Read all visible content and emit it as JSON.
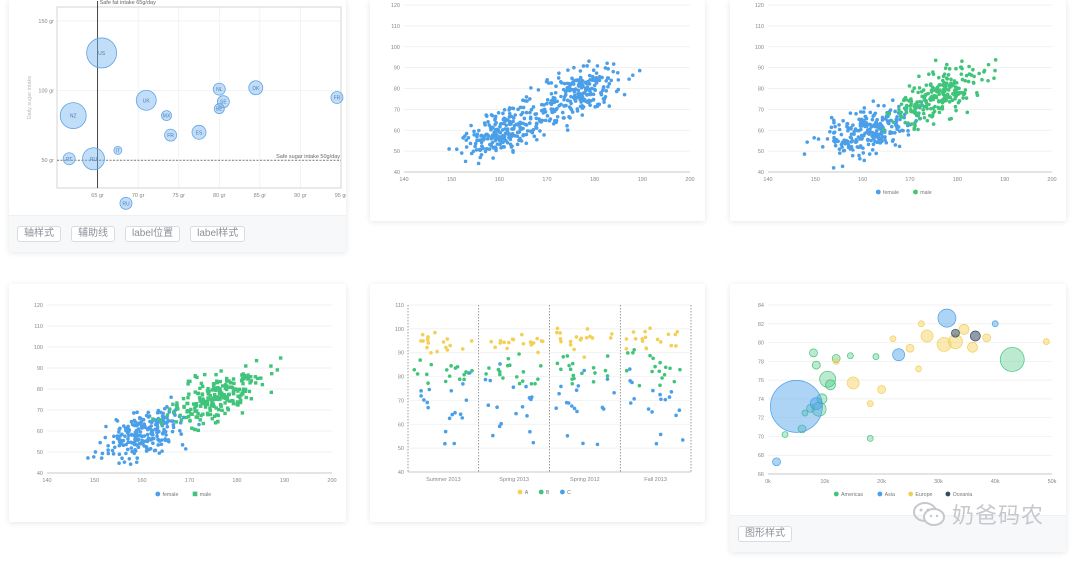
{
  "colors": {
    "blue": "#4a9fe8",
    "green": "#3fc47a",
    "yellow": "#f4cf55",
    "dark": "#344b5f",
    "grid": "#eeeeee",
    "axis": "#999999",
    "text": "#666666"
  },
  "cards": [
    {
      "id": "c1",
      "footer_tags": [
        "轴样式",
        "辅助线",
        "label位置",
        "label样式"
      ]
    },
    {
      "id": "c2",
      "footer_tags": []
    },
    {
      "id": "c3",
      "footer_tags": []
    },
    {
      "id": "c4",
      "footer_tags": []
    },
    {
      "id": "c5",
      "footer_tags": []
    },
    {
      "id": "c6",
      "footer_tags": [
        "图形样式"
      ]
    }
  ],
  "watermark": {
    "text": "奶爸码农"
  },
  "chart_data": [
    {
      "type": "scatter",
      "variant": "bubble-labeled",
      "xlim": [
        60,
        95
      ],
      "ylim": [
        30,
        160
      ],
      "xticks": [
        65,
        70,
        75,
        80,
        85,
        90,
        95
      ],
      "xtick_labels": [
        "65 gr",
        "70 gr",
        "75 gr",
        "80 gr",
        "85 gr",
        "90 gr",
        "95 gr"
      ],
      "yticks": [
        50,
        100,
        150
      ],
      "ytick_labels": [
        "50 gr",
        "100 gr",
        "150 gr"
      ],
      "ylabel": "Daily sugar intake",
      "reference_lines": [
        {
          "axis": "x",
          "value": 65,
          "label": "Safe fat intake 65g/day"
        },
        {
          "axis": "y",
          "value": 50,
          "label": "Safe sugar intake 50g/day"
        }
      ],
      "points": [
        {
          "x": 65.5,
          "y": 127,
          "r": 15,
          "label": "US"
        },
        {
          "x": 62.0,
          "y": 82,
          "r": 13,
          "label": "NZ"
        },
        {
          "x": 71.0,
          "y": 93,
          "r": 10,
          "label": "UK"
        },
        {
          "x": 64.5,
          "y": 51,
          "r": 11,
          "label": "RU"
        },
        {
          "x": 61.5,
          "y": 51,
          "r": 6,
          "label": "PT"
        },
        {
          "x": 67.5,
          "y": 57,
          "r": 4,
          "label": "IT"
        },
        {
          "x": 68.5,
          "y": 19,
          "r": 6,
          "label": "RU"
        },
        {
          "x": 73.5,
          "y": 82,
          "r": 5,
          "label": "MX"
        },
        {
          "x": 74.0,
          "y": 68,
          "r": 6,
          "label": "FR"
        },
        {
          "x": 77.5,
          "y": 70,
          "r": 7,
          "label": "ES"
        },
        {
          "x": 80.0,
          "y": 101,
          "r": 6,
          "label": "NL"
        },
        {
          "x": 80.5,
          "y": 92,
          "r": 6,
          "label": "SE"
        },
        {
          "x": 80.0,
          "y": 87,
          "r": 5,
          "label": "BE"
        },
        {
          "x": 84.5,
          "y": 102,
          "r": 7,
          "label": "DK"
        },
        {
          "x": 94.5,
          "y": 95,
          "r": 6,
          "label": "FR"
        }
      ]
    },
    {
      "type": "scatter",
      "xlim": [
        140,
        200
      ],
      "ylim": [
        40,
        120
      ],
      "xticks": [
        140,
        150,
        160,
        170,
        180,
        190,
        200
      ],
      "yticks": [
        40,
        50,
        60,
        70,
        80,
        90,
        100,
        110,
        120
      ],
      "series": [
        {
          "color": "blue",
          "marker": "circle",
          "seed": 7,
          "n": 470,
          "mode": "all"
        }
      ]
    },
    {
      "type": "scatter",
      "xlim": [
        140,
        200
      ],
      "ylim": [
        40,
        120
      ],
      "xticks": [
        140,
        150,
        160,
        170,
        180,
        190,
        200
      ],
      "yticks": [
        40,
        50,
        60,
        70,
        80,
        90,
        100,
        110,
        120
      ],
      "series": [
        {
          "name": "female",
          "color": "blue",
          "marker": "circle",
          "seed": 11,
          "n": 240,
          "mode": "female"
        },
        {
          "name": "male",
          "color": "green",
          "marker": "circle",
          "seed": 23,
          "n": 240,
          "mode": "male"
        }
      ]
    },
    {
      "type": "scatter",
      "xlim": [
        140,
        200
      ],
      "ylim": [
        40,
        120
      ],
      "xticks": [
        140,
        150,
        160,
        170,
        180,
        190,
        200
      ],
      "yticks": [
        40,
        50,
        60,
        70,
        80,
        90,
        100,
        110,
        120
      ],
      "series": [
        {
          "name": "female",
          "color": "blue",
          "marker": "circle",
          "seed": 31,
          "n": 240,
          "mode": "female"
        },
        {
          "name": "male",
          "color": "green",
          "marker": "square",
          "seed": 47,
          "n": 240,
          "mode": "male"
        }
      ]
    },
    {
      "type": "scatter",
      "variant": "category-jitter",
      "categories": [
        "Summer 2013",
        "Spring 2013",
        "Spring 2012",
        "Fall 2013"
      ],
      "ylim": [
        40,
        110
      ],
      "yticks": [
        40,
        50,
        60,
        70,
        80,
        90,
        100,
        110
      ],
      "series": [
        {
          "name": "A",
          "color": "yellow",
          "seed": 5,
          "center": 95,
          "spread": 4
        },
        {
          "name": "B",
          "color": "green",
          "seed": 9,
          "center": 83,
          "spread": 6
        },
        {
          "name": "C",
          "color": "blue",
          "seed": 13,
          "center": 70,
          "spread": 9
        }
      ]
    },
    {
      "type": "scatter",
      "variant": "bubble",
      "xlim": [
        0,
        50000
      ],
      "ylim": [
        66,
        84
      ],
      "xticks": [
        0,
        10000,
        20000,
        30000,
        40000,
        50000
      ],
      "xtick_labels": [
        "0k",
        "10k",
        "20k",
        "30k",
        "40k",
        "50k"
      ],
      "yticks": [
        66,
        68,
        70,
        72,
        74,
        76,
        78,
        80,
        82,
        84
      ],
      "series": [
        {
          "name": "Americas",
          "color": "green",
          "points": [
            [
              43000,
              78.2,
              12
            ],
            [
              10500,
              76.1,
              8
            ],
            [
              11000,
              75.5,
              5
            ],
            [
              9000,
              72.9,
              7
            ],
            [
              12000,
              78.3,
              4
            ],
            [
              3000,
              70.2,
              3
            ],
            [
              6000,
              70.8,
              4
            ],
            [
              14500,
              78.6,
              3
            ],
            [
              8000,
              78.9,
              4
            ],
            [
              19000,
              78.5,
              3
            ],
            [
              9500,
              74.0,
              5
            ],
            [
              7500,
              73.0,
              4
            ],
            [
              18000,
              69.8,
              3
            ],
            [
              6500,
              72.5,
              3
            ],
            [
              8500,
              77.6,
              4
            ]
          ]
        },
        {
          "name": "Asia",
          "color": "blue",
          "points": [
            [
              5000,
              73.2,
              26
            ],
            [
              31500,
              82.6,
              9
            ],
            [
              23000,
              78.7,
              6
            ],
            [
              1500,
              67.3,
              4
            ],
            [
              8500,
              73.5,
              6
            ],
            [
              40000,
              82.0,
              3
            ]
          ]
        },
        {
          "name": "Europe",
          "color": "yellow",
          "points": [
            [
              28000,
              80.7,
              6
            ],
            [
              33000,
              80.1,
              7
            ],
            [
              34500,
              81.4,
              5
            ],
            [
              31000,
              79.8,
              7
            ],
            [
              36000,
              79.5,
              5
            ],
            [
              20000,
              75.0,
              4
            ],
            [
              15000,
              75.7,
              6
            ],
            [
              25000,
              79.4,
              4
            ],
            [
              27000,
              82.0,
              3
            ],
            [
              38500,
              80.5,
              4
            ],
            [
              12000,
              78.0,
              3
            ],
            [
              18000,
              73.5,
              3
            ],
            [
              49000,
              80.1,
              3
            ],
            [
              26500,
              77.2,
              3
            ],
            [
              22000,
              80.4,
              3
            ]
          ]
        },
        {
          "name": "Oceania",
          "color": "dark",
          "points": [
            [
              33000,
              81.0,
              4
            ],
            [
              36500,
              80.7,
              5
            ]
          ]
        }
      ]
    }
  ]
}
